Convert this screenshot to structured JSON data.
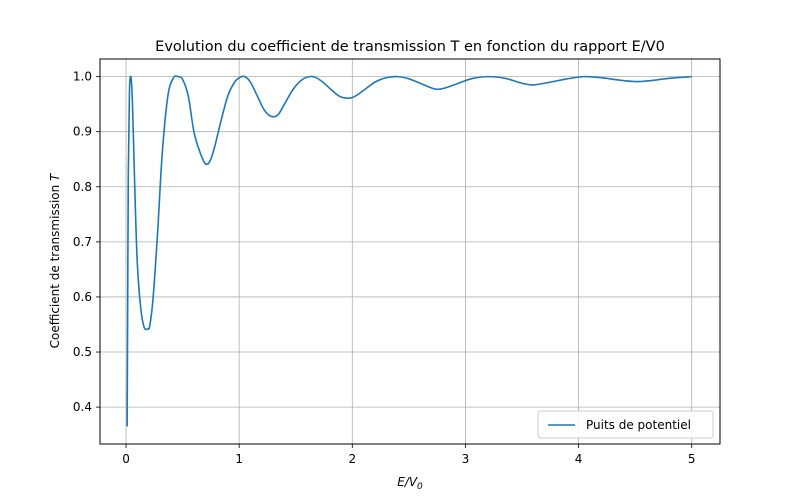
{
  "chart_data": {
    "type": "line",
    "title": "Evolution du coefficient de transmission T en fonction du rapport E/V0",
    "xlabel": {
      "base": "E/V",
      "sub": "0"
    },
    "ylabel": {
      "text": "Coefficient de transmission ",
      "var": "T"
    },
    "xlim": [
      -0.23,
      5.25
    ],
    "ylim": [
      0.333,
      1.032
    ],
    "xticks": [
      0,
      1,
      2,
      3,
      4,
      5
    ],
    "xtick_labels": [
      "0",
      "1",
      "2",
      "3",
      "4",
      "5"
    ],
    "yticks": [
      0.4,
      0.5,
      0.6,
      0.7,
      0.8,
      0.9,
      1.0
    ],
    "ytick_labels": [
      "0.4",
      "0.5",
      "0.6",
      "0.7",
      "0.8",
      "0.9",
      "1.0"
    ],
    "grid": true,
    "legend_position": "lower right",
    "series": [
      {
        "name": "Puits de potentiel",
        "color": "#1f77b4",
        "x": [
          0.01,
          0.015,
          0.02,
          0.03,
          0.04,
          0.05,
          0.06,
          0.08,
          0.1,
          0.13,
          0.16,
          0.19,
          0.21,
          0.24,
          0.28,
          0.32,
          0.37,
          0.42,
          0.46,
          0.5,
          0.55,
          0.6,
          0.65,
          0.7,
          0.74,
          0.78,
          0.84,
          0.9,
          0.96,
          1.01,
          1.05,
          1.1,
          1.16,
          1.22,
          1.28,
          1.34,
          1.4,
          1.48,
          1.56,
          1.62,
          1.67,
          1.74,
          1.82,
          1.9,
          2.0,
          2.1,
          2.2,
          2.3,
          2.4,
          2.5,
          2.6,
          2.75,
          2.9,
          3.05,
          3.2,
          3.35,
          3.5,
          3.6,
          3.75,
          3.9,
          4.05,
          4.2,
          4.35,
          4.5,
          4.65,
          4.8,
          5.0
        ],
        "y": [
          0.365,
          0.6,
          0.82,
          0.97,
          1.0,
          0.985,
          0.93,
          0.78,
          0.66,
          0.58,
          0.545,
          0.542,
          0.548,
          0.6,
          0.72,
          0.86,
          0.965,
          0.998,
          1.0,
          0.995,
          0.965,
          0.9,
          0.865,
          0.842,
          0.846,
          0.87,
          0.92,
          0.965,
          0.99,
          0.999,
          1.0,
          0.99,
          0.965,
          0.94,
          0.928,
          0.93,
          0.95,
          0.978,
          0.995,
          1.0,
          0.999,
          0.99,
          0.975,
          0.963,
          0.962,
          0.975,
          0.99,
          0.998,
          1.0,
          0.996,
          0.988,
          0.977,
          0.985,
          0.996,
          1.0,
          0.997,
          0.988,
          0.985,
          0.99,
          0.996,
          1.0,
          0.998,
          0.994,
          0.991,
          0.993,
          0.997,
          1.0
        ]
      }
    ]
  }
}
